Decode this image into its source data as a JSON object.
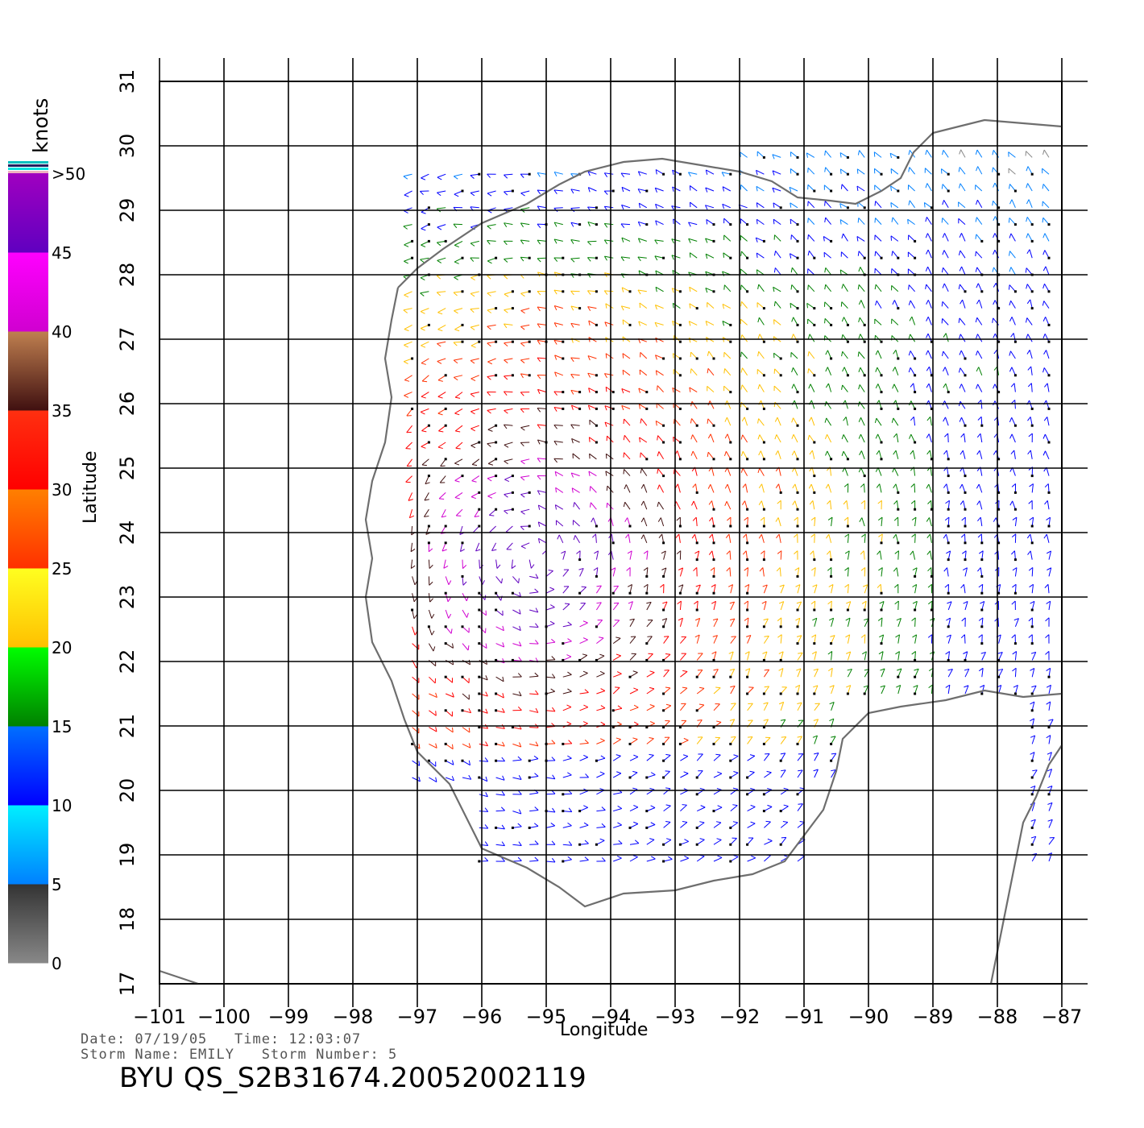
{
  "map": {
    "title_unit": "knots",
    "x_axis_title": "Longitude",
    "y_axis_title": "Latitude",
    "lon_range": [
      -101,
      -87
    ],
    "lat_range": [
      17,
      31
    ],
    "lon_ticks": [
      "−101",
      "−100",
      "−99",
      "−98",
      "−97",
      "−96",
      "−95",
      "−94",
      "−93",
      "−92",
      "−91",
      "−90",
      "−89",
      "−88",
      "−87"
    ],
    "lat_ticks": [
      "17",
      "18",
      "19",
      "20",
      "21",
      "22",
      "23",
      "24",
      "25",
      "26",
      "27",
      "28",
      "29",
      "30",
      "31"
    ],
    "grid": true,
    "coastline_color": "#6e6e6e",
    "layer": "wind barbs (QuikSCAT)"
  },
  "legend": {
    "unit": "knots",
    "max_label": ">50",
    "labels": [
      "0",
      "5",
      "10",
      "15",
      "20",
      "25",
      "30",
      "35",
      "40",
      "45",
      ">50"
    ],
    "bands": [
      {
        "from": 0,
        "to": 5,
        "top": "#333333",
        "bottom": "#888888"
      },
      {
        "from": 5,
        "to": 10,
        "top": "#00f0ff",
        "bottom": "#0080ff"
      },
      {
        "from": 10,
        "to": 15,
        "top": "#0070ff",
        "bottom": "#0000ff"
      },
      {
        "from": 15,
        "to": 20,
        "top": "#00ff00",
        "bottom": "#008000"
      },
      {
        "from": 20,
        "to": 25,
        "top": "#ffff20",
        "bottom": "#ffc000"
      },
      {
        "from": 25,
        "to": 30,
        "top": "#ff8000",
        "bottom": "#ff3000"
      },
      {
        "from": 30,
        "to": 35,
        "top": "#ff3010",
        "bottom": "#ff0000"
      },
      {
        "from": 35,
        "to": 40,
        "top": "#c08050",
        "bottom": "#401010"
      },
      {
        "from": 40,
        "to": 45,
        "top": "#ff00ff",
        "bottom": "#d000d0"
      },
      {
        "from": 45,
        "to": 50,
        "top": "#a000c0",
        "bottom": "#6000c0"
      }
    ]
  },
  "info": {
    "date_line": "Date: 07/19/05   Time: 12:03:07",
    "storm_line": "Storm Name: EMILY   Storm Number: 5",
    "file_id": "BYU QS_S2B31674.20052002119"
  }
}
